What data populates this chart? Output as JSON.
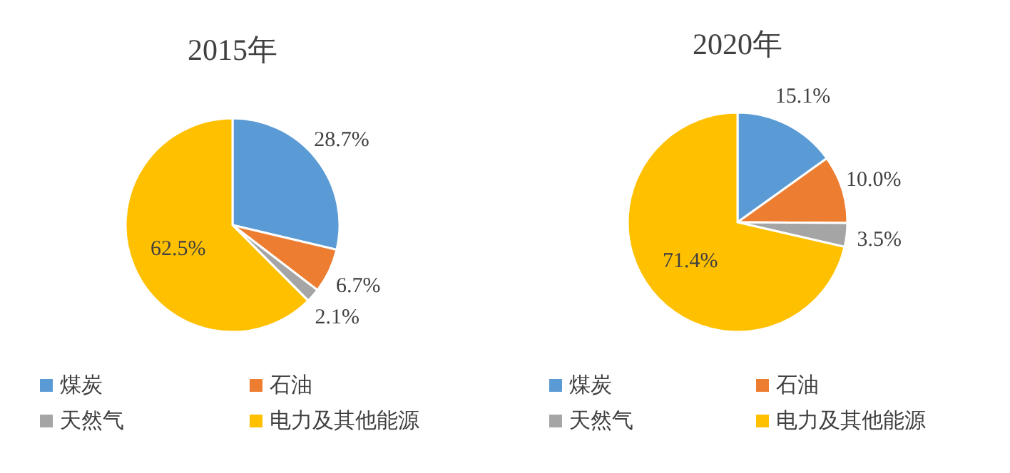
{
  "chart_data": [
    {
      "type": "pie",
      "title": "2015年",
      "categories": [
        "煤炭",
        "石油",
        "天然气",
        "电力及其他能源"
      ],
      "values": [
        28.7,
        6.7,
        2.1,
        62.5
      ],
      "colors": [
        "#5b9bd5",
        "#ed7d31",
        "#a5a5a5",
        "#ffc000"
      ],
      "value_labels": [
        "28.7%",
        "6.7%",
        "2.1%",
        "62.5%"
      ],
      "legend": "bottom"
    },
    {
      "type": "pie",
      "title": "2020年",
      "categories": [
        "煤炭",
        "石油",
        "天然气",
        "电力及其他能源"
      ],
      "values": [
        15.1,
        10.0,
        3.5,
        71.4
      ],
      "colors": [
        "#5b9bd5",
        "#ed7d31",
        "#a5a5a5",
        "#ffc000"
      ],
      "value_labels": [
        "15.1%",
        "10.0%",
        "3.5%",
        "71.4%"
      ],
      "legend": "bottom"
    }
  ]
}
